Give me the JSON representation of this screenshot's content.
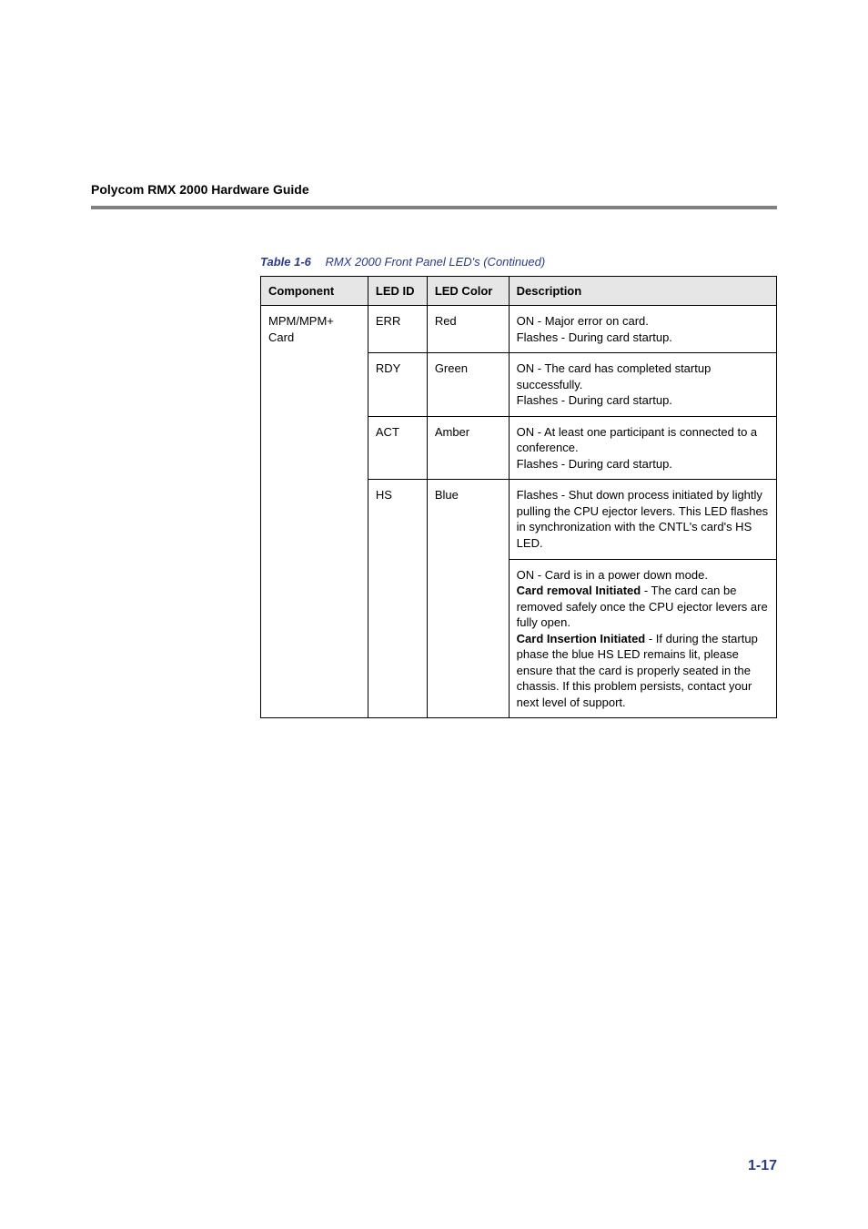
{
  "header": {
    "title": "Polycom RMX 2000 Hardware Guide"
  },
  "caption": {
    "label": "Table 1-6",
    "text": "RMX 2000 Front Panel LED's (Continued)"
  },
  "table": {
    "headers": {
      "component": "Component",
      "led_id": "LED ID",
      "led_color": "LED Color",
      "description": "Description"
    },
    "component_label": "MPM/MPM+ Card",
    "rows": [
      {
        "led_id": "ERR",
        "color": "Red",
        "desc": "ON - Major error on card.\nFlashes - During card startup."
      },
      {
        "led_id": "RDY",
        "color": "Green",
        "desc": "ON - The card has completed startup successfully.\nFlashes - During card startup."
      },
      {
        "led_id": "ACT",
        "color": "Amber",
        "desc": "ON - At least one participant is connected to a conference.\nFlashes - During card startup."
      },
      {
        "led_id": "HS",
        "color": "Blue",
        "desc": "Flashes - Shut down process initiated by lightly pulling the CPU ejector levers. This LED flashes in synchronization with the CNTL's card's HS LED."
      }
    ],
    "hs_extra": {
      "line1": "ON - Card is in a power down mode.",
      "bold1": "Card removal Initiated",
      "after_bold1": " - The card can be removed safely once the CPU ejector levers are fully open.",
      "bold2": "Card Insertion Initiated",
      "after_bold2": " - If during the startup phase the blue HS LED remains lit, please ensure that the card is properly seated in the chassis. If this problem persists, contact your next level of support."
    }
  },
  "page_number": "1-17",
  "styling": {
    "header_rule_color": "#808080",
    "table_header_bg": "#e6e6e6",
    "accent_color": "#2a3a8a",
    "border_color": "#000000",
    "font_family": "Arial",
    "body_fontsize": 13,
    "header_fontsize": 14,
    "pagenum_fontsize": 16
  }
}
